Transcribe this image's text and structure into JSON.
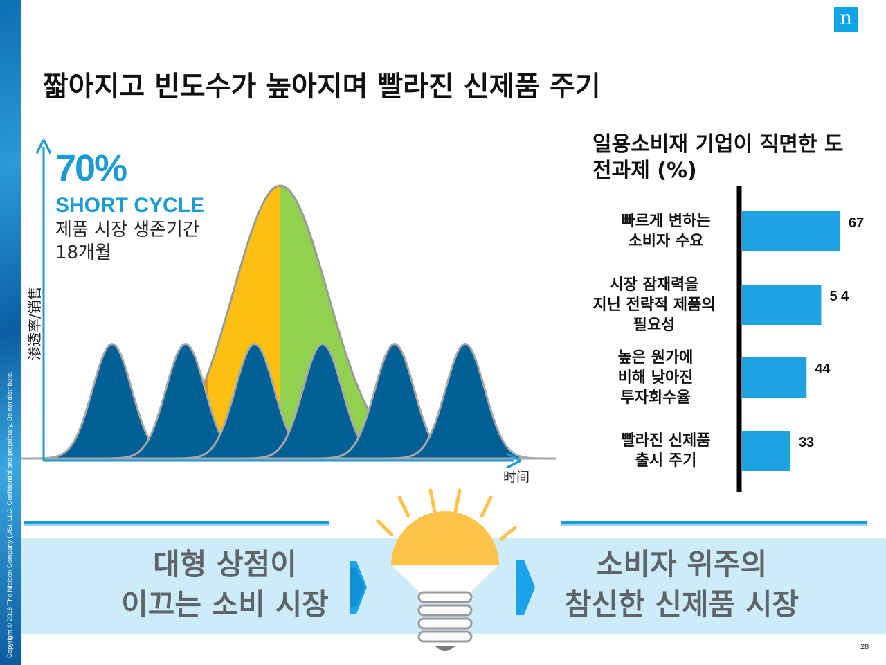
{
  "slide": {
    "title": "짧아지고 빈도수가 높아지며 빨라진 신제품 주기",
    "copyright": "Copyright © 2018 The Nielsen Company (US), LLC. Confidential and proprietary. Do not distribute.",
    "logo_letter": "n",
    "page_number": "28",
    "colors": {
      "accent": "#1a9ad6",
      "dark_blue": "#005f94",
      "orange": "#f39200",
      "yellow": "#fdc010",
      "green": "#92d050",
      "red": "#e04a24"
    }
  },
  "lifecycle": {
    "headline": "70%",
    "subheadline": "SHORT CYCLE",
    "desc_line1": "제품 시장 생존기간",
    "desc_line2": "18개월",
    "yaxis": "渗透率/销售",
    "xaxis": "时间"
  },
  "bottom": {
    "left_line1": "대형 상점이",
    "left_line2": "이끄는 소비 시장",
    "right_line1": "소비자 위주의",
    "right_line2": "참신한 신제품 시장"
  },
  "chart_data": [
    {
      "type": "area",
      "title": "",
      "xlabel": "时间",
      "ylabel": "渗透率/销售",
      "series": [
        {
          "name": "",
          "kind": "long-cycle",
          "center": 405,
          "peak": 1.0,
          "width": 150
        },
        {
          "name": "",
          "kind": "short-cycle",
          "centers": [
            162,
            268,
            368,
            466,
            570,
            672
          ],
          "peak": 0.42
        }
      ]
    },
    {
      "type": "bar",
      "title": "일용소비재 기업이 직면한 도전과제 (%)",
      "categories": [
        [
          "빠르게 변하는",
          "소비자 수요"
        ],
        [
          "시장 잠재력을",
          "지닌 전략적 제품의",
          "필요성"
        ],
        [
          "높은 원가에",
          "비해 낮아진",
          "투자회수율"
        ],
        [
          "빨라진 신제품",
          "출시 주기"
        ]
      ],
      "values": [
        67,
        54,
        44,
        33
      ],
      "value_labels": [
        "67",
        "5 4",
        "44",
        "33"
      ],
      "bar_color": "#1da2e2",
      "xlim": [
        0,
        67
      ]
    }
  ]
}
